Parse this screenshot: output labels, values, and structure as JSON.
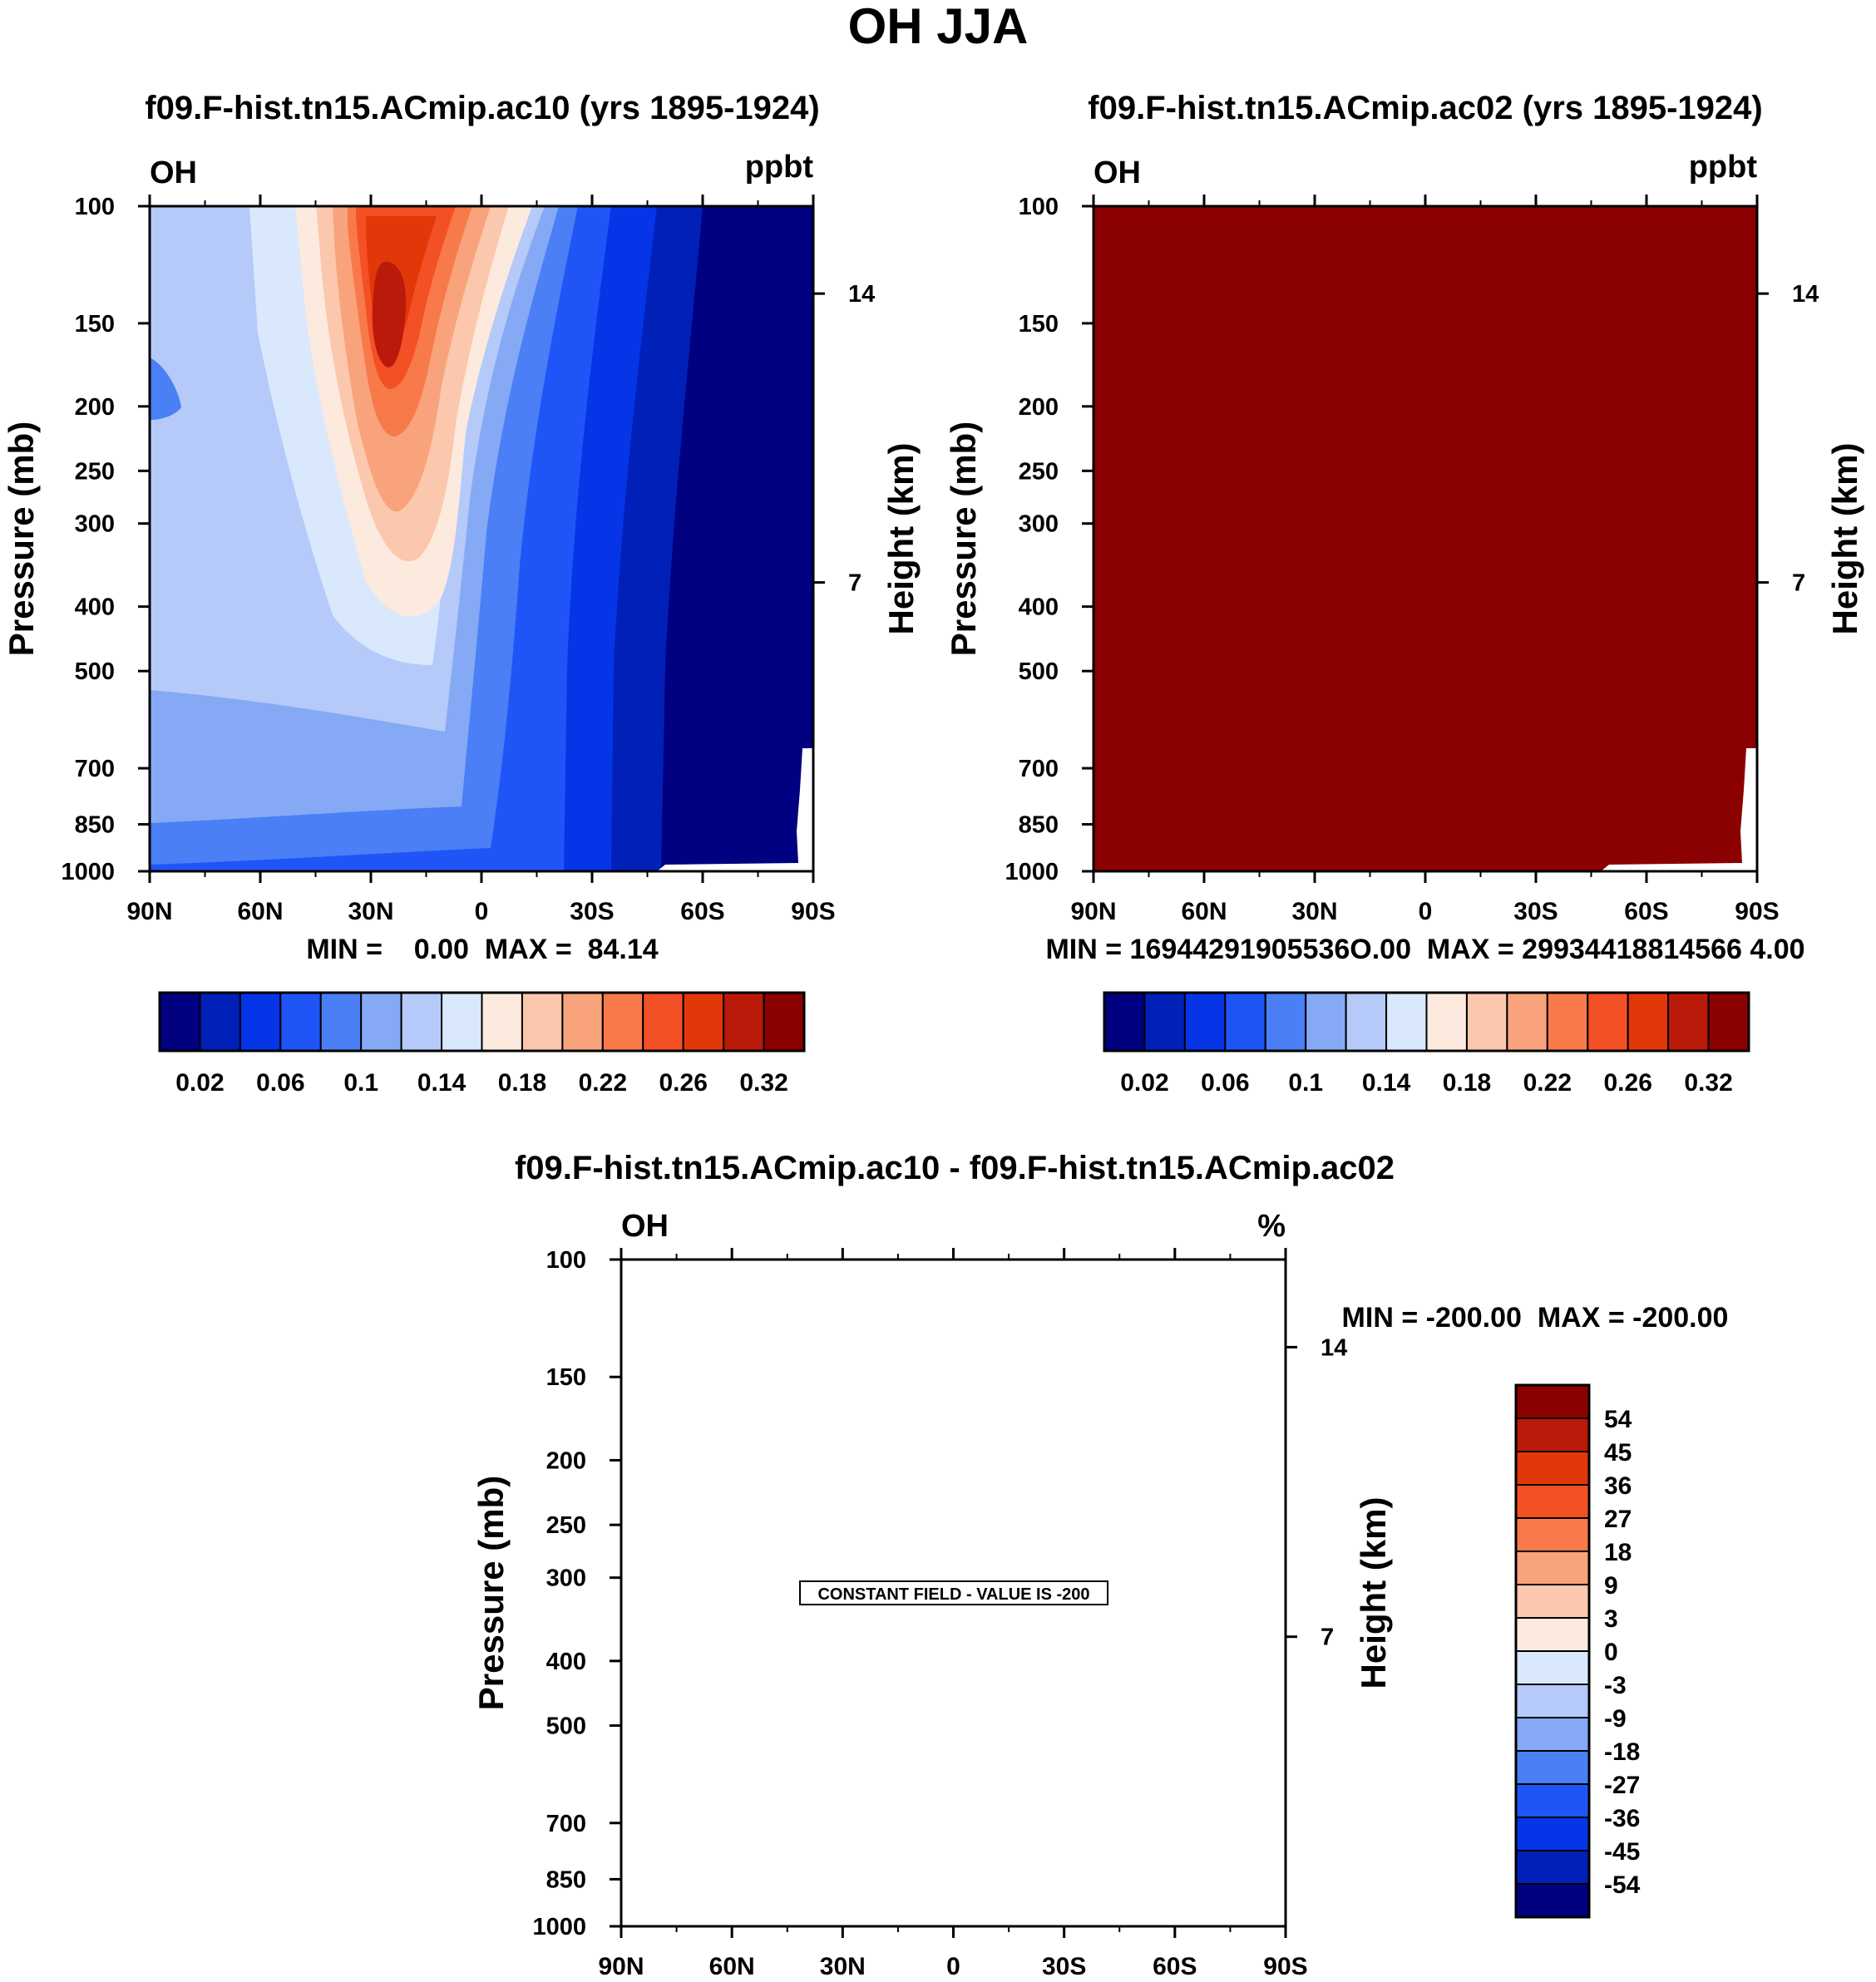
{
  "figure_title": "OH JJA",
  "chart_data": [
    {
      "type": "heatmap",
      "title": "f09.F-hist.tn15.ACmip.ac10 (yrs 1895-1924)",
      "left_string": "OH",
      "right_string": "ppbt",
      "ylabel": "Pressure (mb)",
      "ylabel_right": "Height (km)",
      "xlabel": "",
      "x_ticks": [
        "90N",
        "60N",
        "30N",
        "0",
        "30S",
        "60S",
        "90S"
      ],
      "x_tick_values": [
        90,
        60,
        30,
        0,
        -30,
        -60,
        -90
      ],
      "y_ticks": [
        "100",
        "150",
        "200",
        "250",
        "300",
        "400",
        "500",
        "700",
        "850",
        "1000"
      ],
      "y_tick_values": [
        100,
        150,
        200,
        250,
        300,
        400,
        500,
        700,
        850,
        1000
      ],
      "y_right_ticks": [
        "14",
        "7"
      ],
      "y_right_tick_values": [
        14,
        7
      ],
      "xlim": [
        90,
        -90
      ],
      "ylim": [
        1000,
        100
      ],
      "y_scale": "log",
      "stats": "MIN =    0.00  MAX =  84.14",
      "colorbar": {
        "orientation": "horizontal",
        "labels": [
          "0.02",
          "0.06",
          "0.1",
          "0.14",
          "0.18",
          "0.22",
          "0.26",
          "0.32"
        ],
        "levels": [
          0.02,
          0.04,
          0.06,
          0.08,
          0.1,
          0.12,
          0.14,
          0.16,
          0.18,
          0.2,
          0.22,
          0.24,
          0.26,
          0.28,
          0.32
        ]
      },
      "field_description": "OH mixing ratio, maximum near 30N at 150 mb; lowest values (navy) over southern latitudes",
      "missing_region": "lower right corner near 90S below 700 mb"
    },
    {
      "type": "heatmap",
      "title": "f09.F-hist.tn15.ACmip.ac02 (yrs 1895-1924)",
      "left_string": "OH",
      "right_string": "ppbt",
      "ylabel": "Pressure (mb)",
      "ylabel_right": "Height (km)",
      "xlabel": "",
      "x_ticks": [
        "90N",
        "60N",
        "30N",
        "0",
        "30S",
        "60S",
        "90S"
      ],
      "x_tick_values": [
        90,
        60,
        30,
        0,
        -30,
        -60,
        -90
      ],
      "y_ticks": [
        "100",
        "150",
        "200",
        "250",
        "300",
        "400",
        "500",
        "700",
        "850",
        "1000"
      ],
      "y_tick_values": [
        100,
        150,
        200,
        250,
        300,
        400,
        500,
        700,
        850,
        1000
      ],
      "y_right_ticks": [
        "14",
        "7"
      ],
      "y_right_tick_values": [
        14,
        7
      ],
      "xlim": [
        90,
        -90
      ],
      "ylim": [
        1000,
        100
      ],
      "y_scale": "log",
      "stats": "MIN = 16944291905536O.00  MAX = 29934418814566 4.00",
      "colorbar": {
        "orientation": "horizontal",
        "labels": [
          "0.02",
          "0.06",
          "0.1",
          "0.14",
          "0.18",
          "0.22",
          "0.26",
          "0.32"
        ],
        "levels": [
          0.02,
          0.04,
          0.06,
          0.08,
          0.1,
          0.12,
          0.14,
          0.16,
          0.18,
          0.2,
          0.22,
          0.24,
          0.26,
          0.28,
          0.32
        ]
      },
      "field_description": "entire field saturated at highest color level",
      "missing_region": "lower right corner near 90S below 700 mb"
    },
    {
      "type": "heatmap",
      "title": "f09.F-hist.tn15.ACmip.ac10 - f09.F-hist.tn15.ACmip.ac02",
      "left_string": "OH",
      "right_string": "%",
      "ylabel": "Pressure (mb)",
      "ylabel_right": "Height (km)",
      "xlabel": "",
      "x_ticks": [
        "90N",
        "60N",
        "30N",
        "0",
        "30S",
        "60S",
        "90S"
      ],
      "x_tick_values": [
        90,
        60,
        30,
        0,
        -30,
        -60,
        -90
      ],
      "y_ticks": [
        "100",
        "150",
        "200",
        "250",
        "300",
        "400",
        "500",
        "700",
        "850",
        "1000"
      ],
      "y_tick_values": [
        100,
        150,
        200,
        250,
        300,
        400,
        500,
        700,
        850,
        1000
      ],
      "y_right_ticks": [
        "14",
        "7"
      ],
      "y_right_tick_values": [
        14,
        7
      ],
      "xlim": [
        90,
        -90
      ],
      "ylim": [
        1000,
        100
      ],
      "y_scale": "log",
      "stats": "MIN = -200.00  MAX = -200.00",
      "annotation": "CONSTANT FIELD - VALUE IS -200",
      "colorbar": {
        "orientation": "vertical",
        "labels": [
          "54",
          "45",
          "36",
          "27",
          "18",
          "9",
          "3",
          "0",
          "-3",
          "-9",
          "-18",
          "-27",
          "-36",
          "-45",
          "-54"
        ],
        "levels": [
          54,
          45,
          36,
          27,
          18,
          9,
          3,
          0,
          -3,
          -9,
          -18,
          -27,
          -36,
          -45,
          -54
        ]
      }
    }
  ],
  "colors": {
    "palette": [
      "#000080",
      "#0020b8",
      "#0535e6",
      "#1f55f7",
      "#4a7ff5",
      "#86a9f6",
      "#b5caf9",
      "#d9e8fc",
      "#fdeade",
      "#fbc8ad",
      "#f9a37c",
      "#f87a4a",
      "#f45026",
      "#e23708",
      "#b91a0a",
      "#8b0000"
    ],
    "ink": "#000000",
    "background": "#ffffff"
  }
}
